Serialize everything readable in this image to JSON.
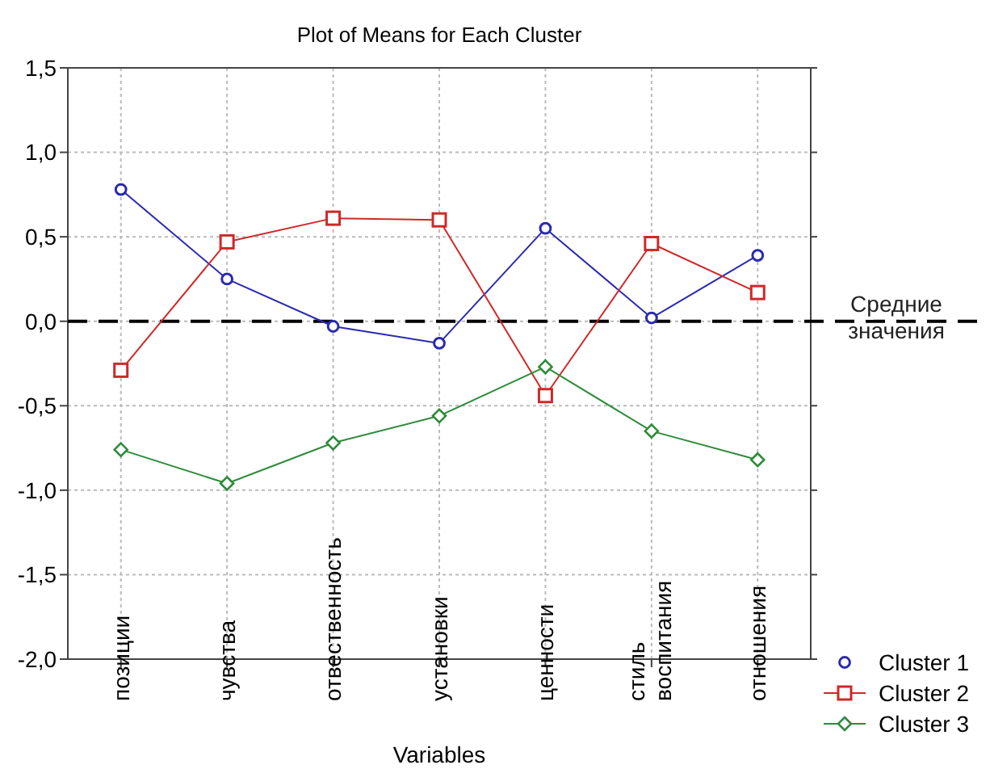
{
  "chart_data": {
    "type": "line",
    "title": "Plot of Means for Each Cluster",
    "xlabel": "Variables",
    "categories": [
      "позиции",
      "чувства",
      "отвественность",
      "установки",
      "ценности",
      "стиль воспитания",
      "отношения"
    ],
    "series": [
      {
        "name": "Cluster 1",
        "color": "#2a2ab0",
        "marker": "circle",
        "values": [
          0.78,
          0.25,
          -0.03,
          -0.13,
          0.55,
          0.02,
          0.39
        ]
      },
      {
        "name": "Cluster 2",
        "color": "#d02828",
        "marker": "square",
        "values": [
          -0.29,
          0.47,
          0.61,
          0.6,
          -0.44,
          0.46,
          0.17
        ]
      },
      {
        "name": "Cluster 3",
        "color": "#2e8b3a",
        "marker": "diamond",
        "values": [
          -0.76,
          -0.96,
          -0.72,
          -0.56,
          -0.27,
          -0.65,
          -0.82
        ]
      }
    ],
    "ylim": [
      -2,
      1.5
    ],
    "yticks": [
      {
        "value": -2,
        "label": "-2,0"
      },
      {
        "value": -1.5,
        "label": "-1,5"
      },
      {
        "value": -1,
        "label": "-1,0"
      },
      {
        "value": -0.5,
        "label": "-0,5"
      },
      {
        "value": 0,
        "label": "0,0"
      },
      {
        "value": 0.5,
        "label": "0,5"
      },
      {
        "value": 1,
        "label": "1,0"
      },
      {
        "value": 1.5,
        "label": "1,5"
      }
    ],
    "ref_lines": [
      {
        "axis": "y",
        "value": 0,
        "label": "Средние\nзначения",
        "color": "#000000",
        "line_style": "dashed"
      }
    ],
    "grid": true,
    "legend": "bottom right",
    "line_style": "solid"
  }
}
